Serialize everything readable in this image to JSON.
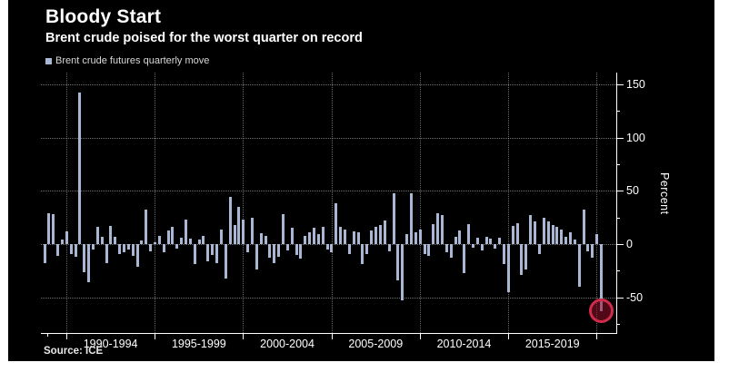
{
  "title": "Bloody Start",
  "subtitle": "Brent crude poised for the worst quarter on record",
  "legend": {
    "label": "Brent crude futures quarterly move"
  },
  "source": "Source: ICE",
  "colors": {
    "page_bg": "#ffffff",
    "panel_bg": "#000000",
    "bar": "#a9b7d4",
    "axis": "#ffffff",
    "text": "#ffffff",
    "highlight_ring": "#cf2b4b",
    "highlight_fill": "rgba(148,17,44,0.55)"
  },
  "chart_data": {
    "type": "bar",
    "title": "Bloody Start",
    "subtitle": "Brent crude poised for the worst quarter on record",
    "series_name": "Brent crude futures quarterly move",
    "frequency": "quarterly",
    "x_start": "1988 Q3",
    "x_end": "2020 Q1",
    "values": [
      -18,
      29,
      28,
      -11,
      4,
      12,
      -9,
      -12,
      142,
      -26,
      -36,
      -5,
      16,
      7,
      -18,
      17,
      7,
      -9,
      -8,
      -5,
      -11,
      -21,
      3,
      32,
      -7,
      2,
      8,
      -8,
      13,
      16,
      -4,
      6,
      23,
      5,
      -19,
      4,
      8,
      -16,
      -10,
      -18,
      14,
      -32,
      44,
      18,
      35,
      23,
      -8,
      25,
      -24,
      10,
      8,
      -13,
      -18,
      -12,
      28,
      -6,
      15,
      -10,
      -14,
      8,
      11,
      15,
      9,
      16,
      -5,
      -8,
      38,
      16,
      14,
      -9,
      12,
      11,
      -19,
      -9,
      13,
      16,
      18,
      22,
      -7,
      48,
      -34,
      -53,
      9,
      48,
      11,
      14,
      -9,
      -11,
      19,
      29,
      27,
      -8,
      -13,
      7,
      13,
      -27,
      19,
      -3,
      6,
      -6,
      7,
      5,
      -4,
      6,
      -19,
      -45,
      17,
      20,
      -29,
      -24,
      27,
      21,
      -9,
      25,
      21,
      18,
      16,
      14,
      7,
      11,
      4,
      -40,
      32,
      -7,
      -13,
      9,
      -63
    ],
    "ylabel": "Percent",
    "ylim": [
      -80,
      160
    ],
    "y_major_ticks": [
      150,
      100,
      50,
      0,
      -50
    ],
    "y_minor_ticks": [
      125,
      75,
      25,
      -25,
      -75
    ],
    "x_section_years": [
      1990,
      1995,
      2000,
      2005,
      2010,
      2015,
      2020
    ],
    "x_labels": [
      "1990-1994",
      "1995-1999",
      "2000-2004",
      "2005-2009",
      "2010-2014",
      "2015-2019"
    ],
    "grid": "dotted",
    "legend_position": "top-left",
    "highlight": {
      "quarter": "2020 Q1",
      "value": -63,
      "marker": "red-circle"
    }
  }
}
